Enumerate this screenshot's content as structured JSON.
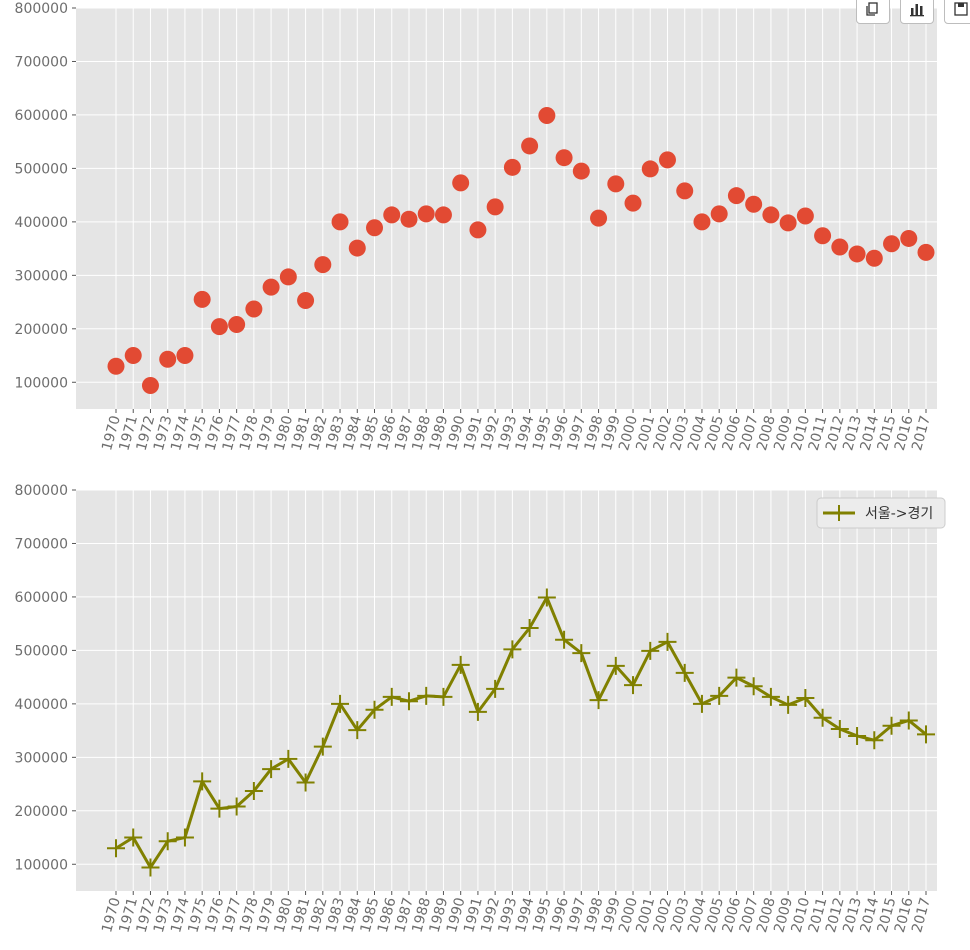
{
  "toolbar": {
    "buttons": [
      {
        "name": "copy-icon"
      },
      {
        "name": "chart-icon"
      },
      {
        "name": "save-icon"
      }
    ]
  },
  "chart_data": [
    {
      "type": "scatter",
      "title": "",
      "xlabel": "",
      "ylabel": "",
      "categories": [
        "1970",
        "1971",
        "1972",
        "1973",
        "1974",
        "1975",
        "1976",
        "1977",
        "1978",
        "1979",
        "1980",
        "1981",
        "1982",
        "1983",
        "1984",
        "1985",
        "1986",
        "1987",
        "1988",
        "1989",
        "1990",
        "1991",
        "1992",
        "1993",
        "1994",
        "1995",
        "1996",
        "1997",
        "1998",
        "1999",
        "2000",
        "2001",
        "2002",
        "2003",
        "2004",
        "2005",
        "2006",
        "2007",
        "2008",
        "2009",
        "2010",
        "2011",
        "2012",
        "2013",
        "2014",
        "2015",
        "2016",
        "2017"
      ],
      "values": [
        130000,
        150000,
        94000,
        143000,
        150000,
        255000,
        204000,
        208000,
        237000,
        278000,
        297000,
        253000,
        320000,
        400000,
        351000,
        389000,
        413000,
        405000,
        415000,
        413000,
        473000,
        385000,
        428000,
        502000,
        542000,
        599000,
        520000,
        495000,
        407000,
        471000,
        435000,
        499000,
        516000,
        458000,
        400000,
        415000,
        449000,
        433000,
        413000,
        398000,
        411000,
        374000,
        353000,
        340000,
        332000,
        359000,
        369000,
        343000
      ],
      "ylim": [
        50000,
        800000
      ],
      "yticks": [
        "100000",
        "200000",
        "300000",
        "400000",
        "500000",
        "600000",
        "700000",
        "800000"
      ],
      "marker_color": "#E24A33",
      "background": "#E5E5E5",
      "grid": true
    },
    {
      "type": "line",
      "title": "",
      "xlabel": "",
      "ylabel": "",
      "categories": [
        "1970",
        "1971",
        "1972",
        "1973",
        "1974",
        "1975",
        "1976",
        "1977",
        "1978",
        "1979",
        "1980",
        "1981",
        "1982",
        "1983",
        "1984",
        "1985",
        "1986",
        "1987",
        "1988",
        "1989",
        "1990",
        "1991",
        "1992",
        "1993",
        "1994",
        "1995",
        "1996",
        "1997",
        "1998",
        "1999",
        "2000",
        "2001",
        "2002",
        "2003",
        "2004",
        "2005",
        "2006",
        "2007",
        "2008",
        "2009",
        "2010",
        "2011",
        "2012",
        "2013",
        "2014",
        "2015",
        "2016",
        "2017"
      ],
      "series": [
        {
          "name": "서울->경기",
          "values": [
            130000,
            150000,
            94000,
            143000,
            150000,
            255000,
            204000,
            208000,
            237000,
            278000,
            297000,
            253000,
            320000,
            400000,
            351000,
            389000,
            413000,
            405000,
            415000,
            413000,
            473000,
            385000,
            428000,
            502000,
            542000,
            599000,
            520000,
            495000,
            407000,
            471000,
            435000,
            499000,
            516000,
            458000,
            400000,
            415000,
            449000,
            433000,
            413000,
            398000,
            411000,
            374000,
            353000,
            340000,
            332000,
            359000,
            369000,
            343000
          ],
          "color": "#808000",
          "marker": "+"
        }
      ],
      "ylim": [
        50000,
        800000
      ],
      "yticks": [
        "100000",
        "200000",
        "300000",
        "400000",
        "500000",
        "600000",
        "700000",
        "800000"
      ],
      "legend": "top-right",
      "background": "#E5E5E5",
      "grid": true
    }
  ]
}
